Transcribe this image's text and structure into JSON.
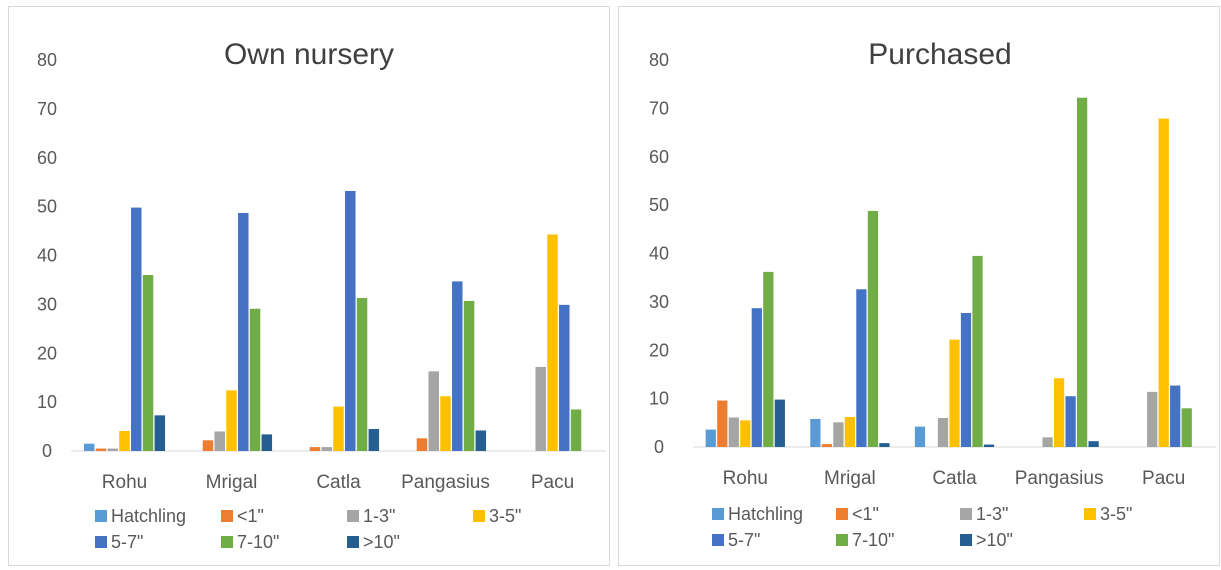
{
  "series_colors": [
    "#5b9bd5",
    "#ed7d31",
    "#a5a5a5",
    "#ffc000",
    "#4472c4",
    "#70ad47",
    "#255e91"
  ],
  "chart_data": [
    {
      "type": "bar",
      "title": "Own nursery",
      "categories": [
        "Rohu",
        "Mrigal",
        "Catla",
        "Pangasius",
        "Pacu"
      ],
      "ylim": [
        0,
        80
      ],
      "yticks": [
        0,
        10,
        20,
        30,
        40,
        50,
        60,
        70,
        80
      ],
      "grid": false,
      "legend": "bottom",
      "series": [
        {
          "name": "Hatchling",
          "values": [
            1.5,
            0,
            0,
            0,
            0
          ]
        },
        {
          "name": "<1\"",
          "values": [
            0.5,
            2.2,
            0.8,
            2.6,
            0
          ]
        },
        {
          "name": "1-3\"",
          "values": [
            0.5,
            4.0,
            0.8,
            16.3,
            17.2
          ]
        },
        {
          "name": "3-5\"",
          "values": [
            4.1,
            12.4,
            9.1,
            11.2,
            44.3
          ]
        },
        {
          "name": "5-7\"",
          "values": [
            49.8,
            48.7,
            53.2,
            34.7,
            29.9
          ]
        },
        {
          "name": "7-10\"",
          "values": [
            36.0,
            29.1,
            31.3,
            30.7,
            8.5
          ]
        },
        {
          "name": ">10\"",
          "values": [
            7.3,
            3.4,
            4.5,
            4.2,
            0
          ]
        }
      ]
    },
    {
      "type": "bar",
      "title": "Purchased",
      "categories": [
        "Rohu",
        "Mrigal",
        "Catla",
        "Pangasius",
        "Pacu"
      ],
      "ylim": [
        0,
        80
      ],
      "yticks": [
        0,
        10,
        20,
        30,
        40,
        50,
        60,
        70,
        80
      ],
      "grid": false,
      "legend": "bottom",
      "series": [
        {
          "name": "Hatchling",
          "values": [
            3.6,
            5.8,
            4.2,
            0,
            0
          ]
        },
        {
          "name": "<1\"",
          "values": [
            9.6,
            0.6,
            0,
            0,
            0
          ]
        },
        {
          "name": "1-3\"",
          "values": [
            6.1,
            5.1,
            6.0,
            2.0,
            11.4
          ]
        },
        {
          "name": "3-5\"",
          "values": [
            5.5,
            6.2,
            22.2,
            14.2,
            67.9
          ]
        },
        {
          "name": "5-7\"",
          "values": [
            28.7,
            32.6,
            27.7,
            10.5,
            12.7
          ]
        },
        {
          "name": "7-10\"",
          "values": [
            36.2,
            48.8,
            39.5,
            72.2,
            8.0
          ]
        },
        {
          "name": ">10\"",
          "values": [
            9.8,
            0.8,
            0.5,
            1.2,
            0
          ]
        }
      ]
    }
  ]
}
